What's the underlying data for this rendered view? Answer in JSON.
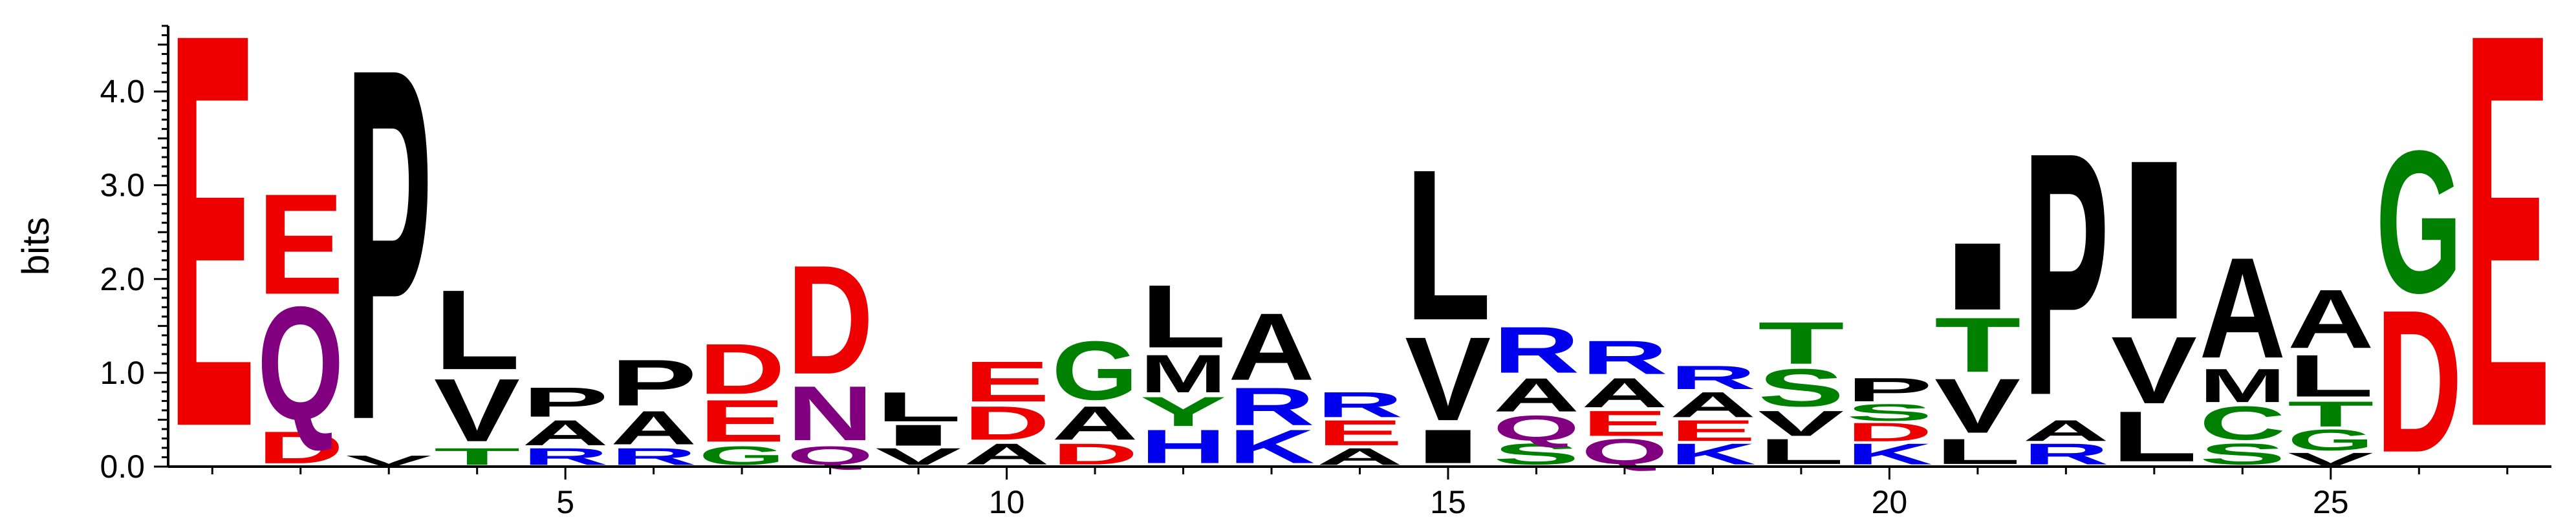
{
  "chart_data": {
    "type": "sequence-logo",
    "title": "",
    "xlabel": "",
    "ylabel": "bits",
    "ylim": [
      0,
      4.7
    ],
    "xlim": [
      0.5,
      27.5
    ],
    "x_ticks": [
      5,
      10,
      15,
      20,
      25
    ],
    "x_tick_labels": [
      "5",
      "10",
      "15",
      "20",
      "25"
    ],
    "y_ticks": [
      0,
      1,
      2,
      3,
      4
    ],
    "y_tick_labels": [
      "0.0",
      "1.0",
      "2.0",
      "3.0",
      "4.0"
    ],
    "colors": {
      "acidic": "#ee0000",
      "polar": "#800080",
      "hydrophobic": "#000000",
      "basic": "#0000ee",
      "neutral": "#008000"
    },
    "positions": [
      {
        "pos": 1,
        "stack": [
          [
            "E",
            4.7
          ]
        ]
      },
      {
        "pos": 2,
        "stack": [
          [
            "D",
            0.38
          ],
          [
            "Q",
            1.35
          ],
          [
            "E",
            1.2
          ]
        ]
      },
      {
        "pos": 3,
        "stack": [
          [
            "V",
            0.12
          ],
          [
            "P",
            4.2
          ]
        ]
      },
      {
        "pos": 4,
        "stack": [
          [
            "T",
            0.2
          ],
          [
            "V",
            0.75
          ],
          [
            "L",
            0.95
          ]
        ]
      },
      {
        "pos": 5,
        "stack": [
          [
            "R",
            0.2
          ],
          [
            "A",
            0.3
          ],
          [
            "P",
            0.35
          ]
        ]
      },
      {
        "pos": 6,
        "stack": [
          [
            "R",
            0.2
          ],
          [
            "A",
            0.4
          ],
          [
            "P",
            0.55
          ]
        ]
      },
      {
        "pos": 7,
        "stack": [
          [
            "G",
            0.22
          ],
          [
            "E",
            0.5
          ],
          [
            "D",
            0.6
          ]
        ]
      },
      {
        "pos": 8,
        "stack": [
          [
            "Q",
            0.22
          ],
          [
            "N",
            0.65
          ],
          [
            "D",
            1.3
          ]
        ]
      },
      {
        "pos": 9,
        "stack": [
          [
            "V",
            0.2
          ],
          [
            "I",
            0.25
          ],
          [
            "L",
            0.35
          ]
        ]
      },
      {
        "pos": 10,
        "stack": [
          [
            "A",
            0.25
          ],
          [
            "D",
            0.4
          ],
          [
            "E",
            0.48
          ]
        ]
      },
      {
        "pos": 11,
        "stack": [
          [
            "D",
            0.25
          ],
          [
            "A",
            0.4
          ],
          [
            "G",
            0.7
          ]
        ]
      },
      {
        "pos": 12,
        "stack": [
          [
            "H",
            0.4
          ],
          [
            "Y",
            0.35
          ],
          [
            "M",
            0.45
          ],
          [
            "L",
            0.75
          ]
        ]
      },
      {
        "pos": 13,
        "stack": [
          [
            "K",
            0.4
          ],
          [
            "R",
            0.45
          ],
          [
            "A",
            0.8
          ]
        ]
      },
      {
        "pos": 14,
        "stack": [
          [
            "A",
            0.2
          ],
          [
            "E",
            0.3
          ],
          [
            "R",
            0.3
          ]
        ]
      },
      {
        "pos": 15,
        "stack": [
          [
            "I",
            0.4
          ],
          [
            "V",
            1.0
          ],
          [
            "L",
            1.8
          ]
        ]
      },
      {
        "pos": 16,
        "stack": [
          [
            "S",
            0.25
          ],
          [
            "Q",
            0.3
          ],
          [
            "A",
            0.4
          ],
          [
            "R",
            0.55
          ]
        ]
      },
      {
        "pos": 17,
        "stack": [
          [
            "Q",
            0.3
          ],
          [
            "E",
            0.3
          ],
          [
            "A",
            0.35
          ],
          [
            "R",
            0.4
          ]
        ]
      },
      {
        "pos": 18,
        "stack": [
          [
            "K",
            0.25
          ],
          [
            "E",
            0.25
          ],
          [
            "A",
            0.3
          ],
          [
            "R",
            0.28
          ]
        ]
      },
      {
        "pos": 19,
        "stack": [
          [
            "L",
            0.3
          ],
          [
            "V",
            0.3
          ],
          [
            "S",
            0.45
          ],
          [
            "T",
            0.5
          ]
        ]
      },
      {
        "pos": 20,
        "stack": [
          [
            "K",
            0.25
          ],
          [
            "D",
            0.22
          ],
          [
            "S",
            0.2
          ],
          [
            "P",
            0.28
          ]
        ]
      },
      {
        "pos": 21,
        "stack": [
          [
            "L",
            0.3
          ],
          [
            "V",
            0.65
          ],
          [
            "T",
            0.65
          ],
          [
            "I",
            0.8
          ]
        ]
      },
      {
        "pos": 22,
        "stack": [
          [
            "R",
            0.25
          ],
          [
            "A",
            0.25
          ],
          [
            "P",
            2.9
          ]
        ]
      },
      {
        "pos": 23,
        "stack": [
          [
            "L",
            0.6
          ],
          [
            "V",
            0.8
          ],
          [
            "I",
            1.9
          ]
        ]
      },
      {
        "pos": 24,
        "stack": [
          [
            "S",
            0.25
          ],
          [
            "C",
            0.4
          ],
          [
            "M",
            0.4
          ],
          [
            "A",
            1.2
          ]
        ]
      },
      {
        "pos": 25,
        "stack": [
          [
            "V",
            0.15
          ],
          [
            "G",
            0.25
          ],
          [
            "T",
            0.3
          ],
          [
            "L",
            0.5
          ],
          [
            "A",
            0.7
          ]
        ]
      },
      {
        "pos": 26,
        "stack": [
          [
            "D",
            1.7
          ],
          [
            "G",
            1.7
          ]
        ]
      },
      {
        "pos": 27,
        "stack": [
          [
            "E",
            4.7
          ]
        ]
      }
    ]
  }
}
